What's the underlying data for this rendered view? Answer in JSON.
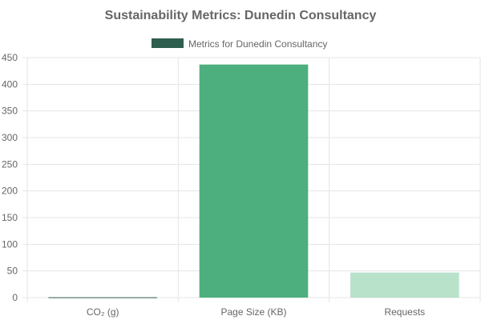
{
  "chart_data": {
    "type": "bar",
    "title": "Sustainability Metrics: Dunedin Consultancy",
    "categories": [
      "CO₂ (g)",
      "Page Size (KB)",
      "Requests"
    ],
    "series": [
      {
        "name": "Metrics for Dunedin Consultancy",
        "values": [
          0.6,
          437,
          47
        ],
        "colors": [
          "#2e5e4e",
          "#4caf7d",
          "#b9e2cb"
        ]
      }
    ],
    "legend_color": "#2e5e4e",
    "legend_position": "top",
    "ylim": [
      0,
      450
    ],
    "yticks": [
      0,
      50,
      100,
      150,
      200,
      250,
      300,
      350,
      400,
      450
    ],
    "grid": true
  }
}
